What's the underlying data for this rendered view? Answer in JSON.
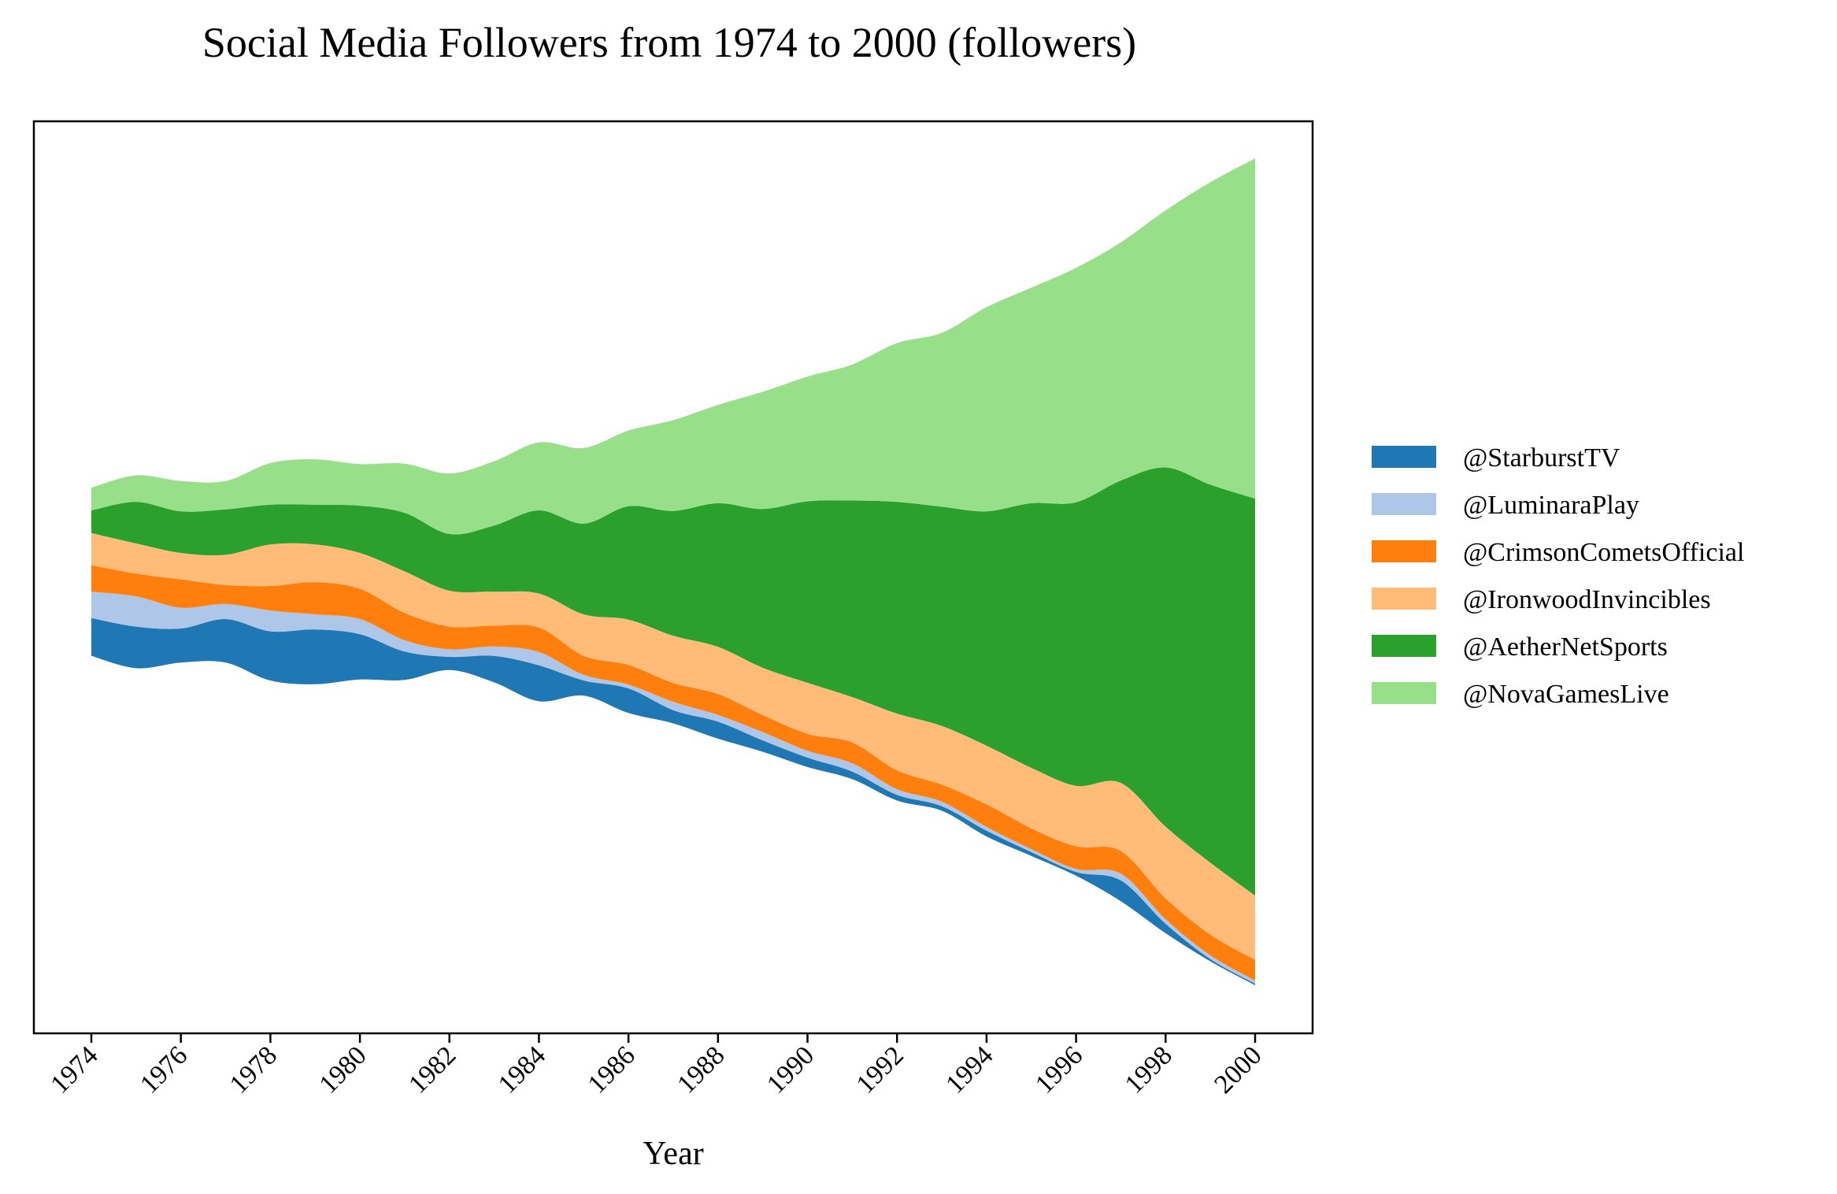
{
  "chart_data": {
    "type": "area",
    "subtype": "streamgraph",
    "title": "Social Media Followers from 1974 to 2000 (followers)",
    "xlabel": "Year",
    "ylabel": "",
    "x": [
      1974,
      1975,
      1976,
      1977,
      1978,
      1979,
      1980,
      1981,
      1982,
      1983,
      1984,
      1985,
      1986,
      1987,
      1988,
      1989,
      1990,
      1991,
      1992,
      1993,
      1994,
      1995,
      1996,
      1997,
      1998,
      1999,
      2000
    ],
    "x_ticks": [
      "1974",
      "1976",
      "1978",
      "1980",
      "1982",
      "1984",
      "1986",
      "1988",
      "1990",
      "1992",
      "1994",
      "1996",
      "1998",
      "2000"
    ],
    "y_ticks_visible": false,
    "grid": false,
    "legend_position": "right",
    "series": [
      {
        "name": "@StarburstTV",
        "color": "#1f77b4",
        "values": [
          100,
          110,
          90,
          115,
          130,
          145,
          120,
          75,
          35,
          70,
          95,
          40,
          65,
          35,
          45,
          30,
          25,
          20,
          15,
          12,
          15,
          10,
          10,
          55,
          25,
          6,
          4
        ]
      },
      {
        "name": "@LuminaraPlay",
        "color": "#aec7e8",
        "values": [
          70,
          80,
          55,
          40,
          55,
          40,
          40,
          30,
          20,
          25,
          35,
          15,
          10,
          22,
          18,
          22,
          18,
          22,
          15,
          12,
          10,
          8,
          8,
          18,
          12,
          10,
          8
        ]
      },
      {
        "name": "@CrimsonCometsOfficial",
        "color": "#ff7f0e",
        "values": [
          70,
          60,
          75,
          50,
          65,
          85,
          80,
          72,
          60,
          55,
          65,
          50,
          52,
          50,
          55,
          45,
          45,
          55,
          50,
          45,
          60,
          55,
          60,
          60,
          55,
          55,
          55
        ]
      },
      {
        "name": "@IronwoodInvincibles",
        "color": "#ffbb78",
        "values": [
          85,
          80,
          70,
          80,
          110,
          100,
          95,
          110,
          95,
          90,
          90,
          110,
          120,
          125,
          125,
          125,
          135,
          120,
          150,
          155,
          155,
          160,
          160,
          180,
          190,
          190,
          170
        ]
      },
      {
        "name": "@AetherNetSports",
        "color": "#2ca02c",
        "values": [
          60,
          110,
          110,
          120,
          105,
          105,
          125,
          155,
          150,
          175,
          220,
          240,
          300,
          330,
          380,
          420,
          480,
          520,
          560,
          580,
          620,
          700,
          750,
          800,
          950,
          1000,
          1050
        ]
      },
      {
        "name": "@NovaGamesLive",
        "color": "#98df8a",
        "values": [
          60,
          70,
          80,
          75,
          110,
          120,
          110,
          130,
          160,
          170,
          180,
          200,
          200,
          240,
          260,
          310,
          330,
          360,
          420,
          460,
          540,
          570,
          620,
          630,
          680,
          800,
          900
        ]
      }
    ]
  }
}
